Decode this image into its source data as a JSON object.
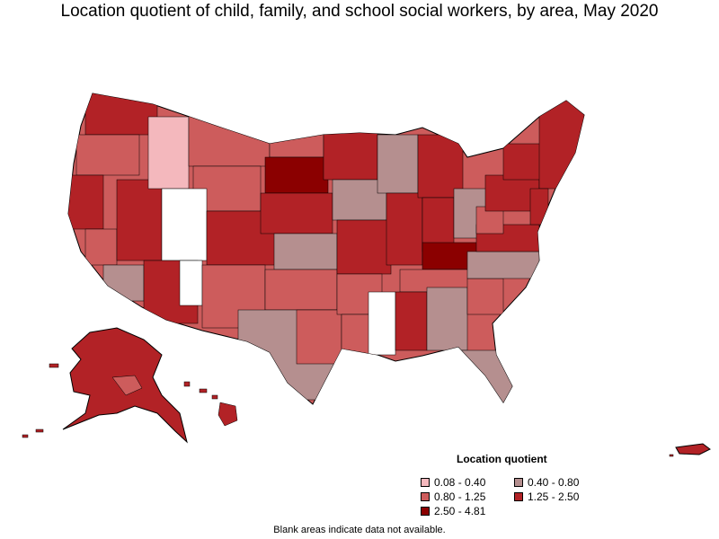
{
  "title": "Location quotient of child, family, and school social workers, by area, May 2020",
  "legend": {
    "title": "Location quotient",
    "items": [
      {
        "label": "0.08 - 0.40",
        "color": "#f4b8bd"
      },
      {
        "label": "0.40 - 0.80",
        "color": "#b58f8f"
      },
      {
        "label": "0.80 - 1.25",
        "color": "#cd5c5c"
      },
      {
        "label": "1.25 - 2.50",
        "color": "#b22226"
      },
      {
        "label": "2.50 - 4.81",
        "color": "#8b0000"
      }
    ]
  },
  "footnote": "Blank areas indicate data not available.",
  "colors": {
    "border": "#000000",
    "blank": "#ffffff",
    "background": "#ffffff"
  }
}
